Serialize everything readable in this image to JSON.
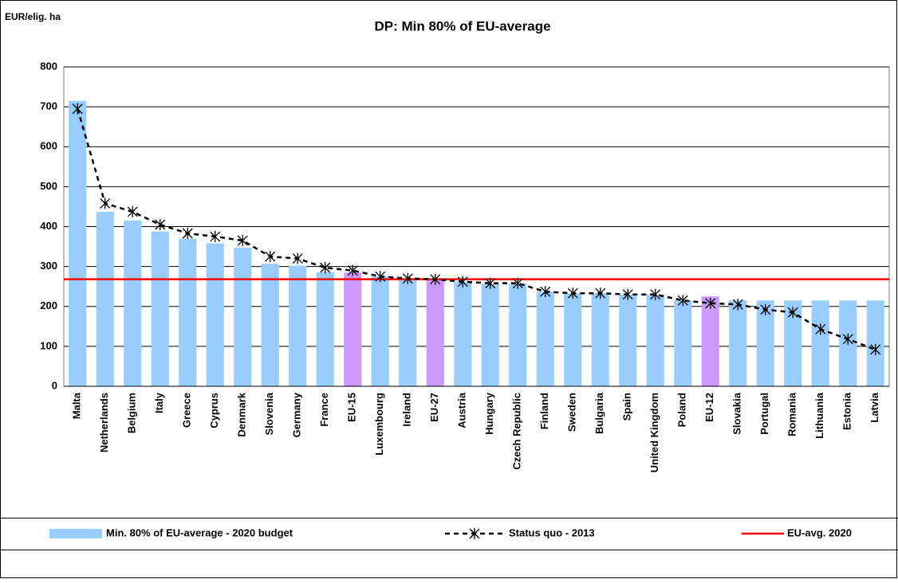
{
  "chart_data": {
    "type": "bar_line",
    "title": "DP: Min 80% of EU-average",
    "y_label": "EUR/elig. ha",
    "categories": [
      "Malta",
      "Netherlands",
      "Belgium",
      "Italy",
      "Greece",
      "Cyprus",
      "Denmark",
      "Slovenia",
      "Germany",
      "France",
      "EU-15",
      "Luxembourg",
      "Ireland",
      "EU-27",
      "Austria",
      "Hungary",
      "Czech Republic",
      "Finland",
      "Sweden",
      "Bulgaria",
      "Spain",
      "United Kingdom",
      "Poland",
      "EU-12",
      "Slovakia",
      "Portugal",
      "Romania",
      "Lithuania",
      "Estonia",
      "Latvia"
    ],
    "series": [
      {
        "name": "Min. 80% of EU-average - 2020 budget",
        "type": "bar",
        "color": "#99ccff",
        "highlight_color": "#cc99ff",
        "highlight": [
          "EU-15",
          "EU-27",
          "EU-12"
        ],
        "values": [
          715,
          437,
          415,
          388,
          370,
          358,
          347,
          307,
          302,
          285,
          285,
          275,
          270,
          268,
          262,
          257,
          257,
          237,
          233,
          233,
          230,
          230,
          215,
          225,
          215,
          215,
          215,
          215,
          215,
          215
        ]
      },
      {
        "name": "Status quo - 2013",
        "type": "line",
        "color": "#000000",
        "values": [
          695,
          458,
          437,
          405,
          383,
          375,
          365,
          325,
          320,
          297,
          290,
          275,
          270,
          268,
          262,
          258,
          258,
          237,
          233,
          233,
          230,
          230,
          215,
          208,
          205,
          192,
          185,
          143,
          118,
          92
        ]
      }
    ],
    "reference_line": {
      "name": "EU-avg. 2020",
      "value": 268,
      "color": "#ff0000"
    },
    "ylim": [
      0,
      800
    ],
    "yticks": [
      0,
      100,
      200,
      300,
      400,
      500,
      600,
      700,
      800
    ],
    "grid": true
  }
}
